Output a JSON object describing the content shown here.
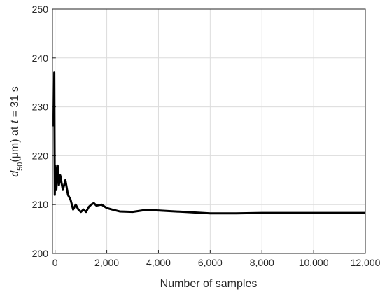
{
  "chart_data": {
    "type": "line",
    "xlabel": "Number of samples",
    "ylabel_parts": [
      "d",
      "50",
      "(μm) at ",
      "t",
      " = 31 s"
    ],
    "x": [
      -50,
      -30,
      -10,
      10,
      50,
      100,
      150,
      200,
      300,
      400,
      500,
      600,
      700,
      800,
      900,
      1000,
      1100,
      1200,
      1300,
      1400,
      1500,
      1600,
      1800,
      2000,
      2200,
      2500,
      3000,
      3500,
      4000,
      5000,
      6000,
      7000,
      8000,
      9000,
      10000,
      11000,
      12000
    ],
    "series": [
      {
        "color": "#000000",
        "values": [
          226,
          237,
          212,
          218,
          213,
          218,
          214,
          216,
          213,
          215,
          212,
          211,
          209,
          210,
          209,
          208.5,
          209,
          208.5,
          209.5,
          210,
          210.3,
          209.8,
          210,
          209.3,
          209,
          208.6,
          208.5,
          208.9,
          208.8,
          208.5,
          208.2,
          208.2,
          208.3,
          208.3,
          208.3,
          208.3,
          208.3
        ]
      }
    ],
    "xlim": [
      -100,
      12000
    ],
    "ylim": [
      200,
      250
    ],
    "xticks": [
      0,
      {
        "value": 2000,
        "label": "2,000"
      },
      {
        "value": 4000,
        "label": "4,000"
      },
      {
        "value": 6000,
        "label": "6,000"
      },
      {
        "value": 8000,
        "label": "8,000"
      },
      {
        "value": 10000,
        "label": "10,000"
      },
      {
        "value": 12000,
        "label": "12,000"
      }
    ],
    "yticks": [
      200,
      210,
      220,
      230,
      240,
      250
    ],
    "grid": true
  }
}
